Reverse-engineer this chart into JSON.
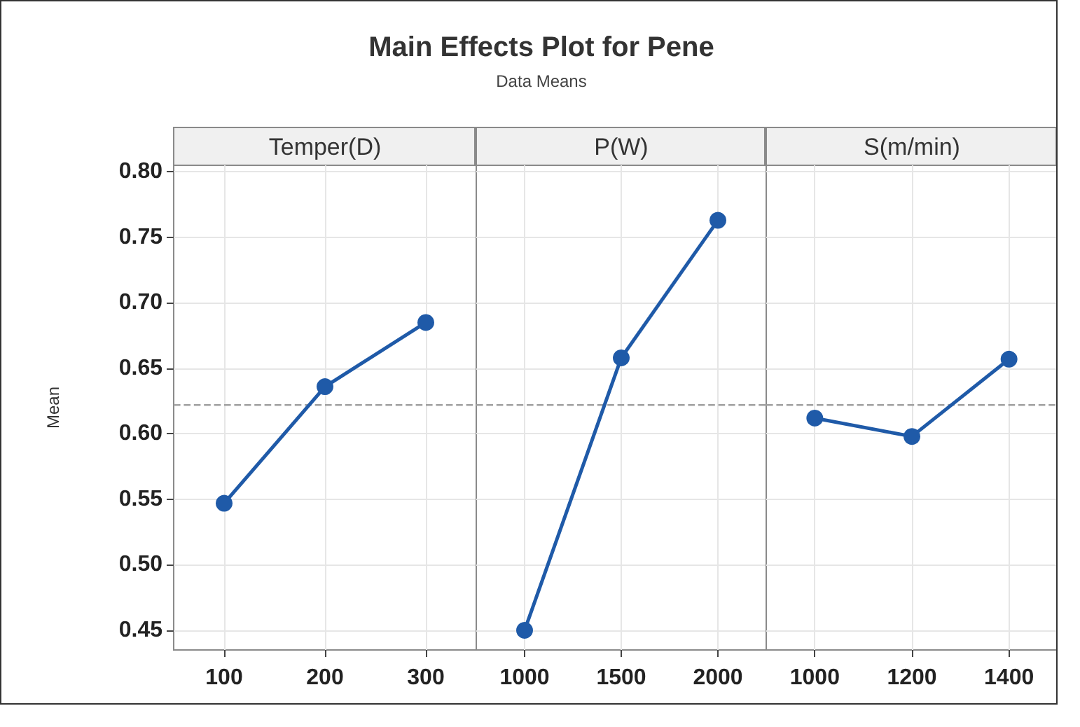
{
  "chart_data": [
    {
      "type": "line",
      "ylabel": "Mean",
      "xlabel": "Temper(D)",
      "categories": [
        "100",
        "200",
        "300"
      ],
      "series": [
        {
          "color": "#1f5aa8",
          "values": [
            0.547,
            0.636,
            0.685
          ]
        }
      ],
      "ylim": [
        0.435,
        0.805
      ],
      "yticks": [
        {
          "value": 0.45,
          "label": "0.45"
        },
        {
          "value": 0.5,
          "label": "0.50"
        },
        {
          "value": 0.55,
          "label": "0.55"
        },
        {
          "value": 0.6,
          "label": "0.60"
        },
        {
          "value": 0.65,
          "label": "0.65"
        },
        {
          "value": 0.7,
          "label": "0.70"
        },
        {
          "value": 0.75,
          "label": "0.75"
        },
        {
          "value": 0.8,
          "label": "0.80"
        }
      ],
      "ref_lines": [
        {
          "axis": "y",
          "value": 0.622,
          "color": "#a0a0a0",
          "line_style": "dashed"
        }
      ],
      "grid": true,
      "marker": "circle",
      "line_style": "solid"
    },
    {
      "type": "line",
      "title": "Main Effects Plot for Pene",
      "subtitle": "Data Means",
      "xlabel": "P(W)",
      "categories": [
        "1000",
        "1500",
        "2000"
      ],
      "series": [
        {
          "color": "#1f5aa8",
          "values": [
            0.45,
            0.658,
            0.763
          ]
        }
      ],
      "ylim": [
        0.435,
        0.805
      ],
      "yticks": [
        {
          "value": 0.45,
          "label": null
        },
        {
          "value": 0.5,
          "label": null
        },
        {
          "value": 0.55,
          "label": null
        },
        {
          "value": 0.6,
          "label": null
        },
        {
          "value": 0.65,
          "label": null
        },
        {
          "value": 0.7,
          "label": null
        },
        {
          "value": 0.75,
          "label": null
        },
        {
          "value": 0.8,
          "label": null
        }
      ],
      "tick_labels": "x",
      "ref_lines": [
        {
          "axis": "y",
          "value": 0.622,
          "color": "#a0a0a0",
          "line_style": "dashed"
        }
      ],
      "grid": true,
      "marker": "circle",
      "line_style": "solid"
    },
    {
      "type": "line",
      "xlabel": "S(m/min)",
      "categories": [
        "1000",
        "1200",
        "1400"
      ],
      "series": [
        {
          "color": "#1f5aa8",
          "values": [
            0.612,
            0.598,
            0.657
          ]
        }
      ],
      "ylim": [
        0.435,
        0.805
      ],
      "yticks": [
        {
          "value": 0.45,
          "label": null
        },
        {
          "value": 0.5,
          "label": null
        },
        {
          "value": 0.55,
          "label": null
        },
        {
          "value": 0.6,
          "label": null
        },
        {
          "value": 0.65,
          "label": null
        },
        {
          "value": 0.7,
          "label": null
        },
        {
          "value": 0.75,
          "label": null
        },
        {
          "value": 0.8,
          "label": null
        }
      ],
      "tick_labels": "x",
      "ref_lines": [
        {
          "axis": "y",
          "value": 0.622,
          "color": "#a0a0a0",
          "line_style": "dashed"
        }
      ],
      "grid": true,
      "marker": "circle",
      "line_style": "solid"
    }
  ]
}
